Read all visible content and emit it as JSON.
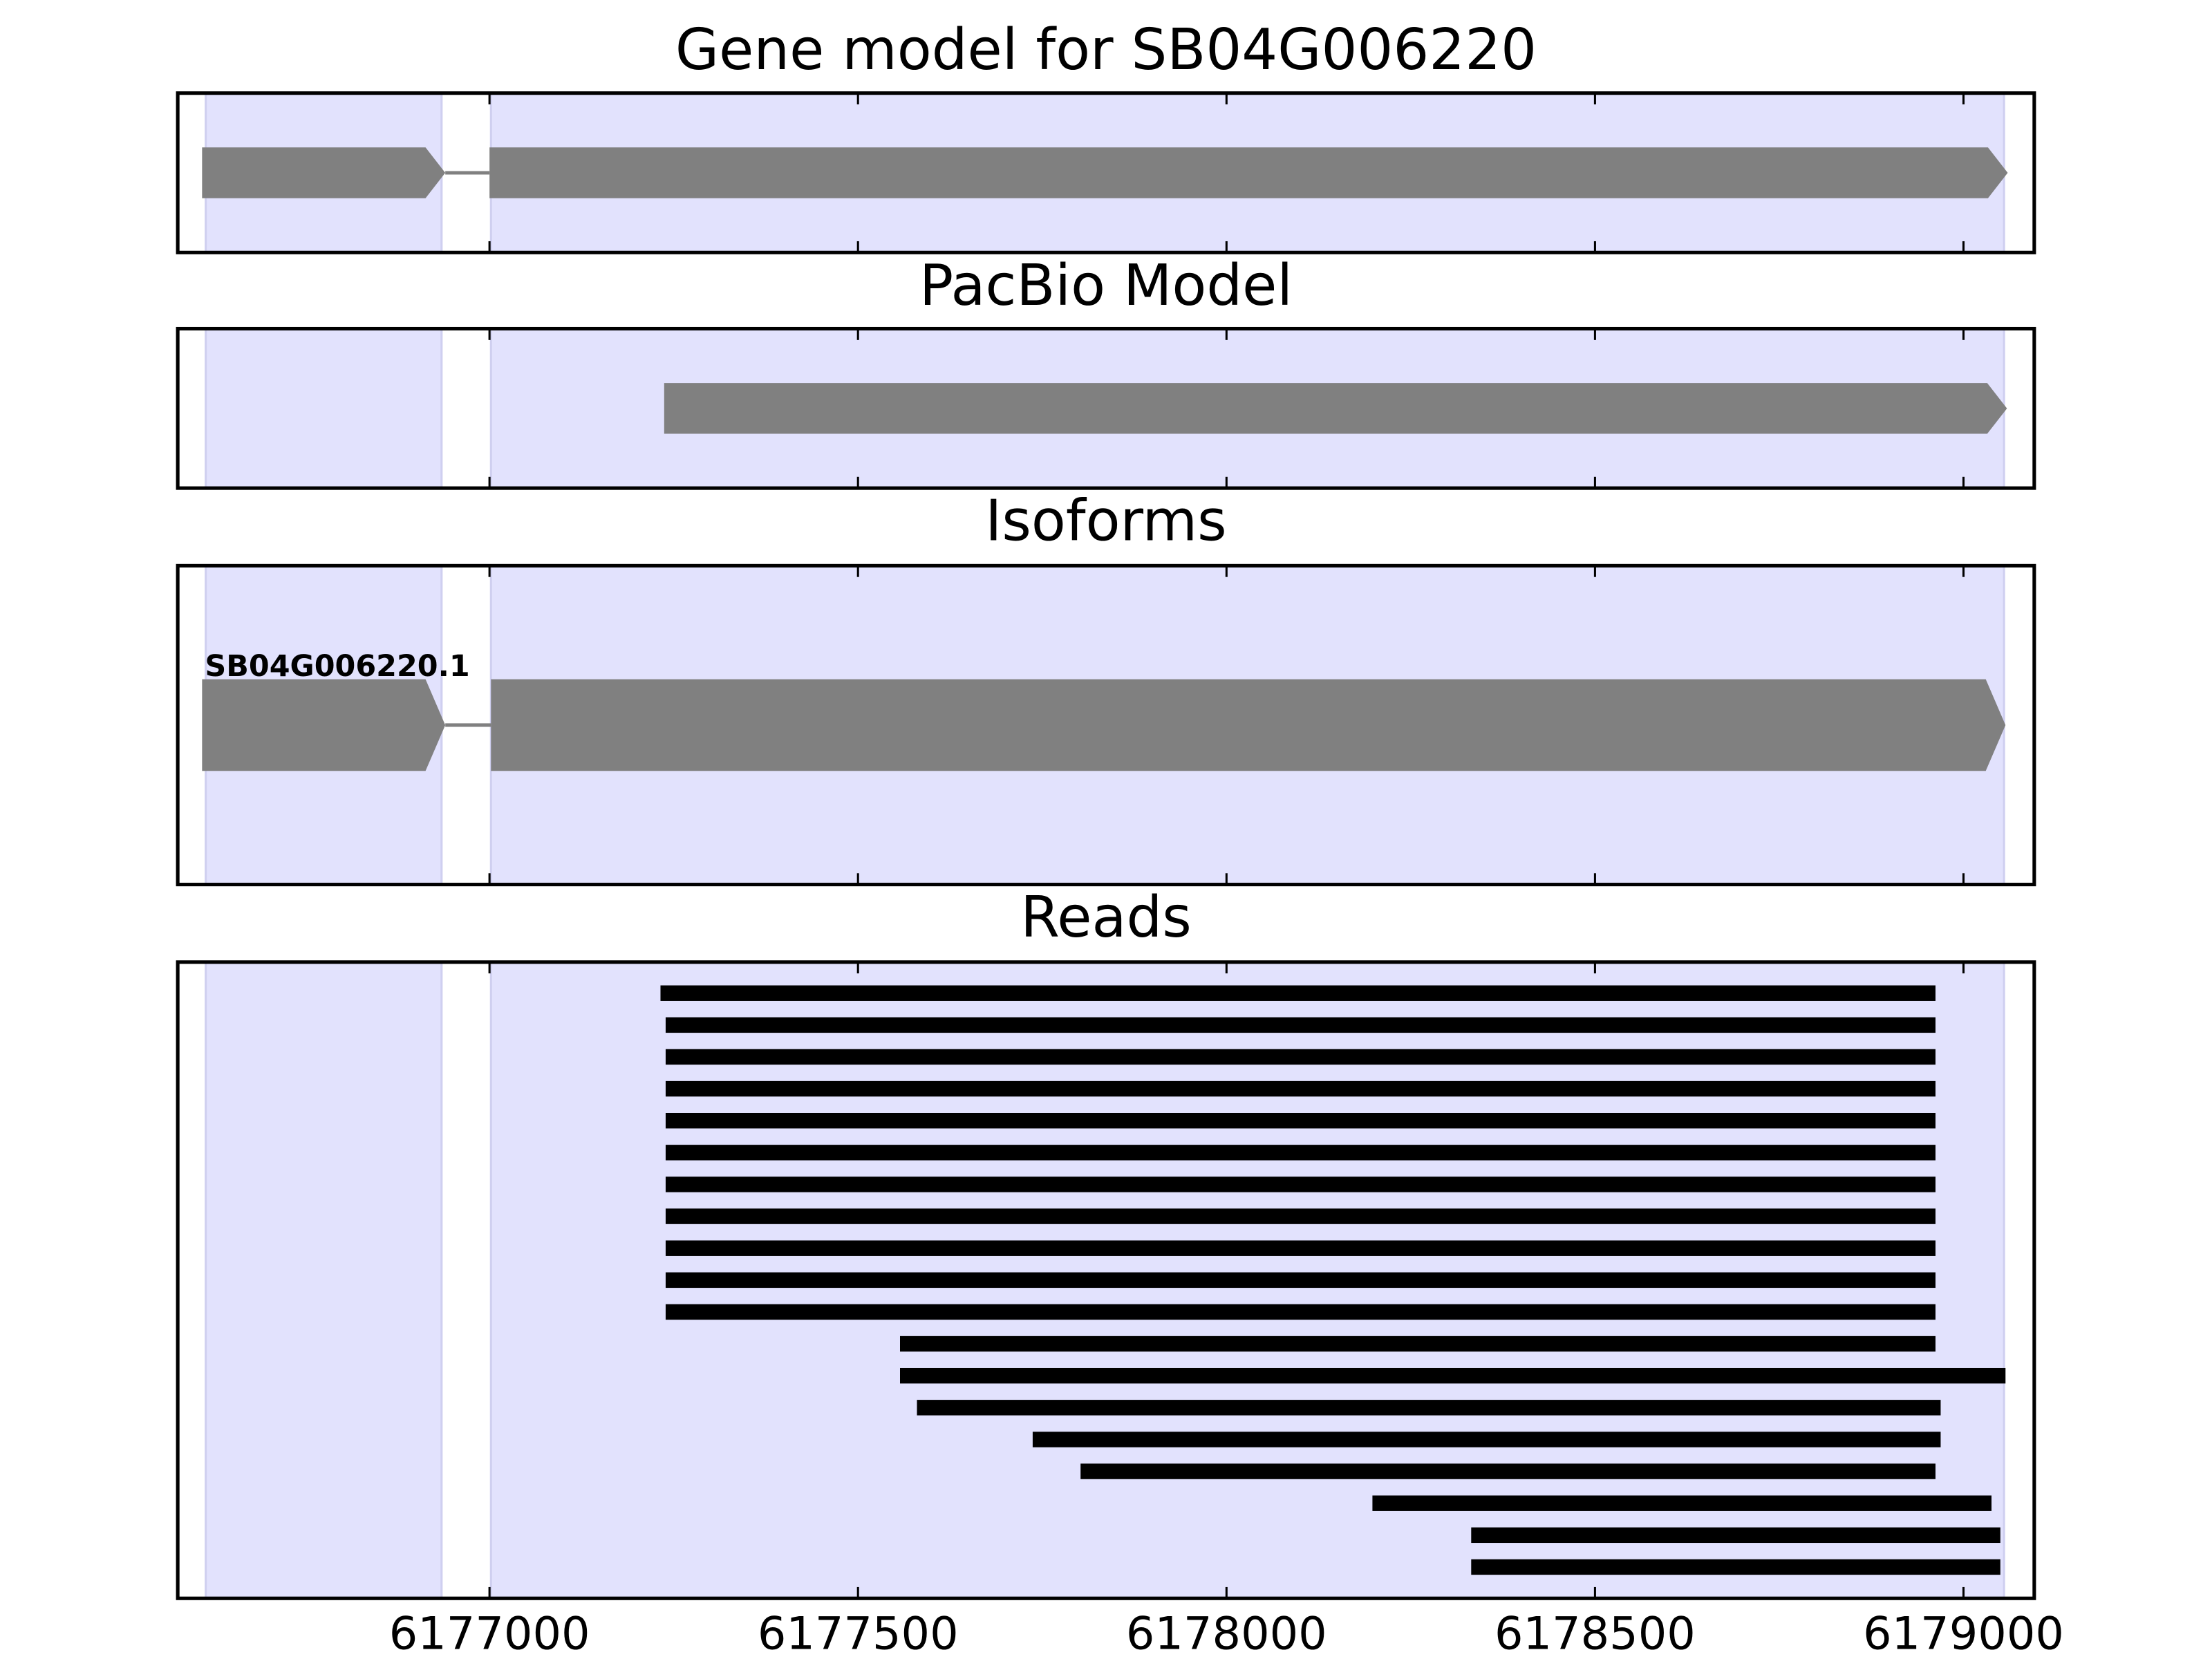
{
  "chart_data": [
    {
      "type": "gene",
      "title": "Gene model for SB04G006220",
      "exons": [
        [
          6176610,
          6176940
        ],
        [
          6177000,
          6179060
        ]
      ],
      "shaded": [
        [
          6176615,
          6176935
        ],
        [
          6177002,
          6179055
        ]
      ],
      "xlim": [
        6176577,
        6179096
      ],
      "xticks": [
        6177000,
        6177500,
        6178000,
        6178500,
        6179000
      ]
    },
    {
      "type": "gene",
      "title": "PacBio Model",
      "exons": [
        [
          6177237,
          6179059
        ]
      ],
      "shaded": [
        [
          6176615,
          6176935
        ],
        [
          6177002,
          6179055
        ]
      ],
      "xlim": [
        6176577,
        6179096
      ],
      "xticks": [
        6177000,
        6177500,
        6178000,
        6178500,
        6179000
      ]
    },
    {
      "type": "gene",
      "title": "Isoforms",
      "label": "SB04G006220.1",
      "exons": [
        [
          6176610,
          6176940
        ],
        [
          6177002,
          6179057
        ]
      ],
      "shaded": [
        [
          6176615,
          6176935
        ],
        [
          6177002,
          6179055
        ]
      ],
      "xlim": [
        6176577,
        6179096
      ],
      "xticks": [
        6177000,
        6177500,
        6178000,
        6178500,
        6179000
      ]
    },
    {
      "type": "reads",
      "title": "Reads",
      "reads": [
        [
          6177232,
          6178962
        ],
        [
          6177239,
          6178962
        ],
        [
          6177239,
          6178962
        ],
        [
          6177239,
          6178962
        ],
        [
          6177239,
          6178962
        ],
        [
          6177239,
          6178962
        ],
        [
          6177239,
          6178962
        ],
        [
          6177239,
          6178962
        ],
        [
          6177239,
          6178962
        ],
        [
          6177239,
          6178962
        ],
        [
          6177239,
          6178962
        ],
        [
          6177557,
          6178962
        ],
        [
          6177557,
          6179057
        ],
        [
          6177580,
          6178969
        ],
        [
          6177737,
          6178969
        ],
        [
          6177802,
          6178962
        ],
        [
          6178198,
          6179038
        ],
        [
          6178332,
          6179050
        ],
        [
          6178332,
          6179050
        ]
      ],
      "shaded": [
        [
          6176615,
          6176935
        ],
        [
          6177002,
          6179055
        ]
      ],
      "xlim": [
        6176577,
        6179096
      ],
      "xticks": [
        6177000,
        6177500,
        6178000,
        6178500,
        6179000
      ]
    }
  ]
}
